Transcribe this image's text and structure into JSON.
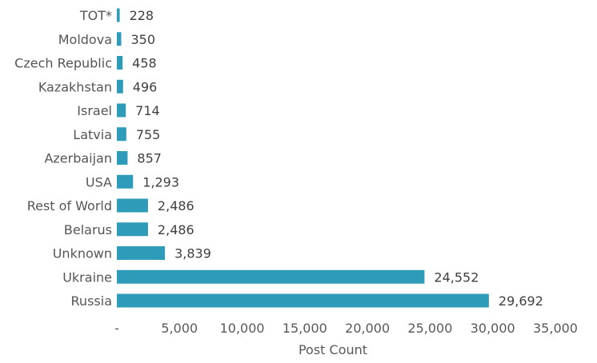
{
  "chart_data": {
    "type": "bar",
    "orientation": "horizontal",
    "categories": [
      "TOT*",
      "Moldova",
      "Czech Republic",
      "Kazakhstan",
      "Israel",
      "Latvia",
      "Azerbaijan",
      "USA",
      "Rest of World",
      "Belarus",
      "Unknown",
      "Ukraine",
      "Russia"
    ],
    "values": [
      228,
      350,
      458,
      496,
      714,
      755,
      857,
      1293,
      2486,
      2486,
      3839,
      24552,
      29692
    ],
    "value_labels": [
      "228",
      "350",
      "458",
      "496",
      "714",
      "755",
      "857",
      "1,293",
      "2,486",
      "2,486",
      "3,839",
      "24,552",
      "29,692"
    ],
    "x_ticks": [
      0,
      5000,
      10000,
      15000,
      20000,
      25000,
      30000,
      35000
    ],
    "x_tick_labels": [
      "-",
      "5,000",
      "10,000",
      "15,000",
      "20,000",
      "25,000",
      "30,000",
      "35,000"
    ],
    "xlabel": "Post Count",
    "xlim": [
      0,
      35000
    ],
    "grid": false,
    "bar_color": "#2e9bb8"
  }
}
